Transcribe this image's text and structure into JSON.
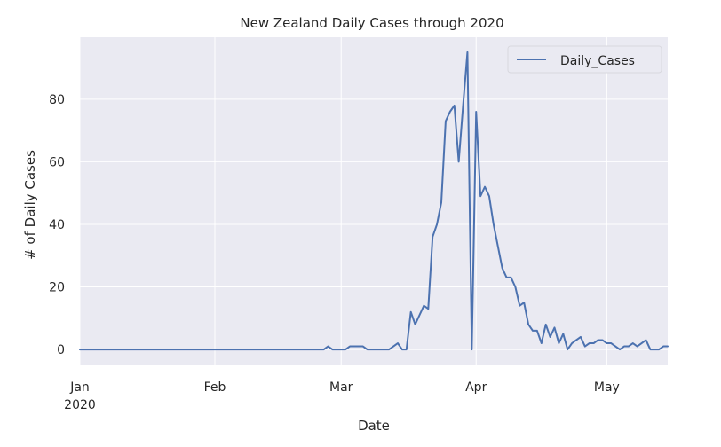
{
  "chart_data": {
    "type": "line",
    "title": "New Zealand Daily Cases through 2020",
    "xlabel": "Date",
    "ylabel": "# of Daily Cases",
    "x_type": "date",
    "xlim": [
      "2020-01-01",
      "2020-05-15"
    ],
    "ylim": [
      -4.8,
      99.8
    ],
    "grid": true,
    "background_color": "#eaeaf2",
    "grid_color": "#ffffff",
    "legend": {
      "placement": "top-right"
    },
    "x_ticks": [
      {
        "date": "2020-01-01",
        "label": "Jan",
        "label2": "2020"
      },
      {
        "date": "2020-02-01",
        "label": "Feb"
      },
      {
        "date": "2020-03-01",
        "label": "Mar"
      },
      {
        "date": "2020-04-01",
        "label": "Apr"
      },
      {
        "date": "2020-05-01",
        "label": "May"
      }
    ],
    "y_ticks": [
      {
        "value": 0,
        "label": "0"
      },
      {
        "value": 20,
        "label": "20"
      },
      {
        "value": 40,
        "label": "40"
      },
      {
        "value": 60,
        "label": "60"
      },
      {
        "value": 80,
        "label": "80"
      }
    ],
    "series": [
      {
        "name": "Daily_Cases",
        "color": "#4c72b0",
        "x": [
          "2020-01-01",
          "2020-02-26",
          "2020-02-27",
          "2020-02-28",
          "2020-02-29",
          "2020-03-01",
          "2020-03-02",
          "2020-03-03",
          "2020-03-04",
          "2020-03-05",
          "2020-03-06",
          "2020-03-07",
          "2020-03-08",
          "2020-03-09",
          "2020-03-10",
          "2020-03-11",
          "2020-03-12",
          "2020-03-13",
          "2020-03-14",
          "2020-03-15",
          "2020-03-16",
          "2020-03-17",
          "2020-03-18",
          "2020-03-19",
          "2020-03-20",
          "2020-03-21",
          "2020-03-22",
          "2020-03-23",
          "2020-03-24",
          "2020-03-25",
          "2020-03-26",
          "2020-03-27",
          "2020-03-28",
          "2020-03-29",
          "2020-03-30",
          "2020-03-31",
          "2020-04-01",
          "2020-04-02",
          "2020-04-03",
          "2020-04-04",
          "2020-04-05",
          "2020-04-06",
          "2020-04-07",
          "2020-04-08",
          "2020-04-09",
          "2020-04-10",
          "2020-04-11",
          "2020-04-12",
          "2020-04-13",
          "2020-04-14",
          "2020-04-15",
          "2020-04-16",
          "2020-04-17",
          "2020-04-18",
          "2020-04-19",
          "2020-04-20",
          "2020-04-21",
          "2020-04-22",
          "2020-04-23",
          "2020-04-24",
          "2020-04-25",
          "2020-04-26",
          "2020-04-27",
          "2020-04-28",
          "2020-04-29",
          "2020-04-30",
          "2020-05-01",
          "2020-05-02",
          "2020-05-03",
          "2020-05-04",
          "2020-05-05",
          "2020-05-06",
          "2020-05-07",
          "2020-05-08",
          "2020-05-09",
          "2020-05-10",
          "2020-05-11",
          "2020-05-12",
          "2020-05-13",
          "2020-05-14",
          "2020-05-15"
        ],
        "values": [
          0,
          0,
          1,
          0,
          0,
          0,
          0,
          1,
          1,
          1,
          1,
          0,
          0,
          0,
          0,
          0,
          0,
          1,
          2,
          0,
          0,
          12,
          8,
          11,
          14,
          13,
          36,
          40,
          47,
          73,
          76,
          78,
          60,
          78,
          95,
          0,
          76,
          49,
          52,
          49,
          40,
          33,
          26,
          23,
          23,
          20,
          14,
          15,
          8,
          6,
          6,
          2,
          8,
          4,
          7,
          2,
          5,
          0,
          2,
          3,
          4,
          1,
          2,
          2,
          3,
          3,
          2,
          2,
          1,
          0,
          1,
          1,
          2,
          1,
          2,
          3,
          0,
          0,
          0,
          1,
          1
        ]
      }
    ]
  }
}
